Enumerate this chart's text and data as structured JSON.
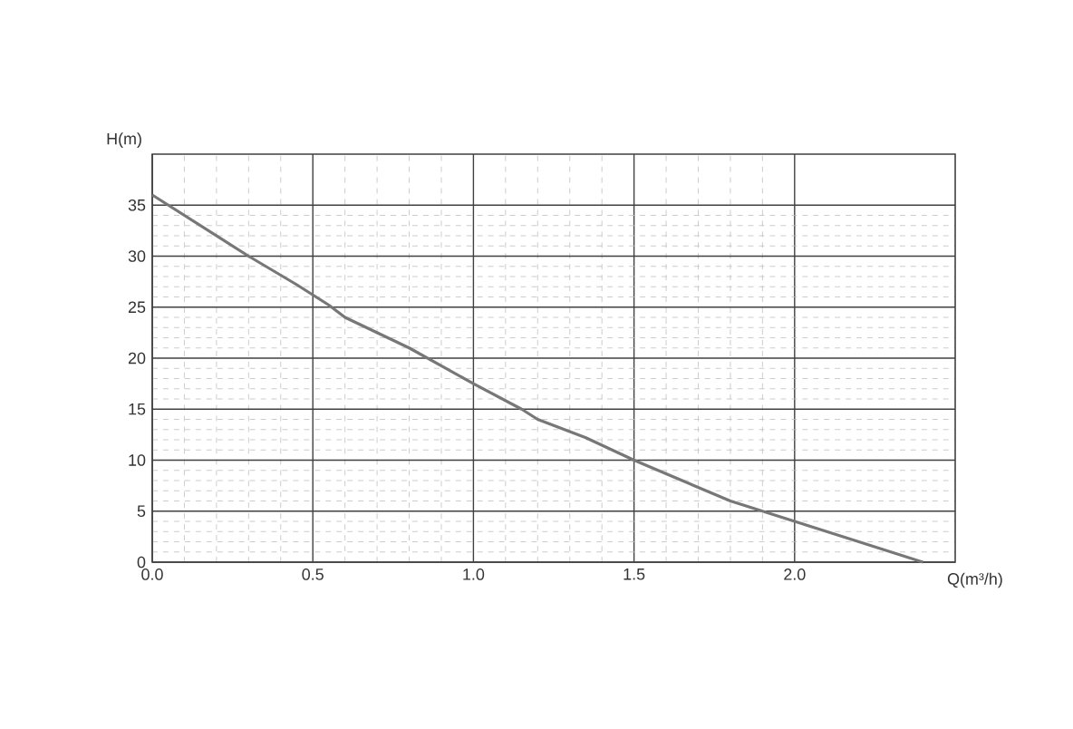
{
  "chart_data": {
    "type": "line",
    "xlabel": "Q(m³/h)",
    "ylabel": "H(m)",
    "series": [
      {
        "color": "#777777",
        "x": [
          0,
          0.15,
          0.3,
          0.45,
          0.55,
          0.6,
          0.8,
          1.0,
          1.15,
          1.2,
          1.35,
          1.5,
          1.65,
          1.8,
          2.0,
          2.2,
          2.4
        ],
        "values": [
          36,
          33,
          30,
          27.2,
          25.2,
          24,
          21,
          17.5,
          15,
          14,
          12.2,
          10,
          8,
          6,
          4,
          2,
          0
        ]
      }
    ],
    "xlim": [
      0,
      2.5
    ],
    "ylim": [
      0,
      40
    ],
    "xticks": [
      {
        "value": 0,
        "label": "0.0"
      },
      {
        "value": 0.5,
        "label": "0.5"
      },
      {
        "value": 1,
        "label": "1.0"
      },
      {
        "value": 1.5,
        "label": "1.5"
      },
      {
        "value": 2,
        "label": "2.0"
      }
    ],
    "yticks": [
      0,
      5,
      10,
      15,
      20,
      25,
      30,
      35
    ],
    "grid": true,
    "marker": "none",
    "line_style": "solid"
  }
}
